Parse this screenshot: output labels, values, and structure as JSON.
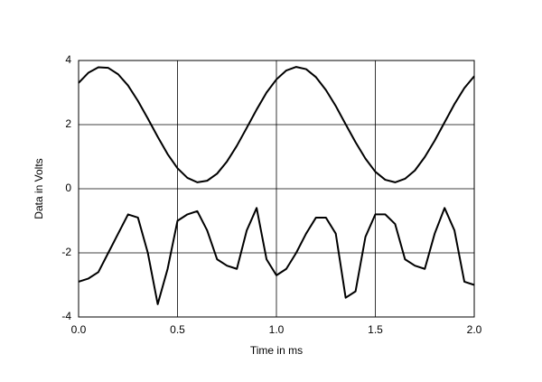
{
  "chart_data": {
    "type": "line",
    "xlabel": "Time in ms",
    "ylabel": "Data in Volts",
    "x": [
      0,
      0.05,
      0.1,
      0.15,
      0.2,
      0.25,
      0.3,
      0.35,
      0.4,
      0.45,
      0.5,
      0.55,
      0.6,
      0.65,
      0.7,
      0.75,
      0.8,
      0.85,
      0.9,
      0.95,
      1.0,
      1.05,
      1.1,
      1.15,
      1.2,
      1.25,
      1.3,
      1.35,
      1.4,
      1.45,
      1.5,
      1.55,
      1.6,
      1.65,
      1.7,
      1.75,
      1.8,
      1.85,
      1.9,
      1.95,
      2.0
    ],
    "series": [
      {
        "color": "#000000",
        "values": [
          3.3,
          3.62,
          3.79,
          3.77,
          3.57,
          3.22,
          2.74,
          2.19,
          1.62,
          1.08,
          0.64,
          0.34,
          0.2,
          0.25,
          0.47,
          0.85,
          1.34,
          1.9,
          2.47,
          3.0,
          3.41,
          3.69,
          3.8,
          3.73,
          3.48,
          3.08,
          2.58,
          2.01,
          1.45,
          0.94,
          0.53,
          0.28,
          0.2,
          0.31,
          0.57,
          0.99,
          1.5,
          2.07,
          2.64,
          3.14,
          3.51
        ]
      },
      {
        "color": "#000000",
        "values": [
          -2.9,
          -2.8,
          -2.6,
          -2.0,
          -1.4,
          -0.8,
          -0.9,
          -2.0,
          -3.6,
          -2.5,
          -1.0,
          -0.8,
          -0.7,
          -1.3,
          -2.2,
          -2.4,
          -2.5,
          -1.3,
          -0.6,
          -2.2,
          -2.7,
          -2.5,
          -2.0,
          -1.4,
          -0.9,
          -0.9,
          -1.4,
          -3.4,
          -3.2,
          -1.5,
          -0.8,
          -0.8,
          -1.1,
          -2.2,
          -2.4,
          -2.5,
          -1.4,
          -0.6,
          -1.3,
          -2.9,
          -3.0
        ]
      }
    ],
    "xlim": [
      0,
      2.0
    ],
    "ylim": [
      -4,
      4
    ],
    "xticks": [
      {
        "value": 0,
        "label": "0.0"
      },
      0.5,
      {
        "value": 1,
        "label": "1.0"
      },
      1.5,
      {
        "value": 2,
        "label": "2.0"
      }
    ],
    "yticks": [
      -4,
      -2,
      0,
      2,
      4
    ],
    "grid": true
  }
}
